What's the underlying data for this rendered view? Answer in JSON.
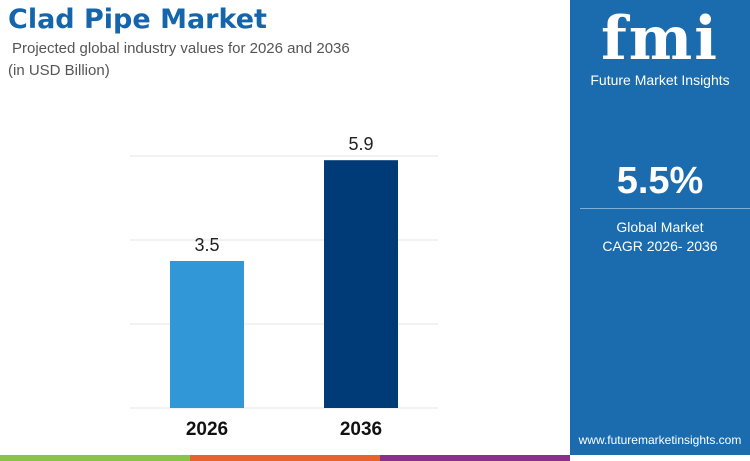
{
  "header": {
    "title": "Clad Pipe Market",
    "subtitle": "Projected global industry values for 2026 and 2036",
    "unit": "(in USD Billion)"
  },
  "panel": {
    "logo_text": "fmi",
    "logo_caption": "Future Market Insights",
    "cagr": "5.5%",
    "cagr_label_1": "Global Market",
    "cagr_label_2": "CAGR 2026- 2036",
    "website": "www.futuremarketinsights.com",
    "color": "#1b6cae"
  },
  "chart_data": {
    "type": "bar",
    "categories": [
      "2026",
      "2036"
    ],
    "values": [
      3.5,
      5.9
    ],
    "colors": [
      "#3197d6",
      "#003b78"
    ],
    "ylim": [
      0,
      6
    ],
    "grid": true,
    "xlabel": "",
    "ylabel": ""
  }
}
